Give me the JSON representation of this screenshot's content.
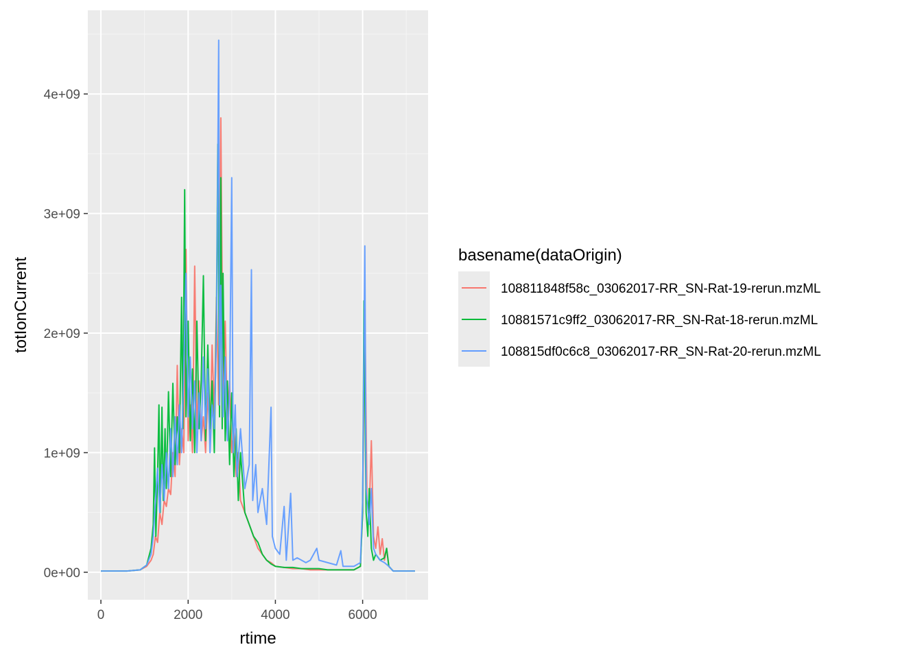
{
  "chart_data": {
    "type": "line",
    "xlabel": "rtime",
    "ylabel": "totIonCurrent",
    "xlim": [
      -300,
      7500
    ],
    "ylim": [
      -230000000,
      4700000000
    ],
    "x_ticks": [
      0,
      2000,
      4000,
      6000
    ],
    "x_tick_labels": [
      "0",
      "2000",
      "4000",
      "6000"
    ],
    "y_ticks": [
      0,
      1000000000,
      2000000000,
      3000000000,
      4000000000
    ],
    "y_tick_labels": [
      "0e+00",
      "1e+09",
      "2e+09",
      "3e+09",
      "4e+09"
    ],
    "grid": true,
    "legend": {
      "title": "basename(dataOrigin)",
      "placement": "right",
      "entries": [
        "108811848f58c_03062017-RR_SN-Rat-19-rerun.mzML",
        "10881571c9ff2_03062017-RR_SN-Rat-18-rerun.mzML",
        "108815df0c6c8_03062017-RR_SN-Rat-20-rerun.mzML"
      ]
    },
    "colors": [
      "#F8766D",
      "#00BA38",
      "#619CFF"
    ],
    "series": [
      {
        "name": "108811848f58c_03062017-RR_SN-Rat-19-rerun.mzML",
        "color": "#F8766D",
        "points": [
          [
            0,
            0.01
          ],
          [
            300,
            0.01
          ],
          [
            600,
            0.01
          ],
          [
            900,
            0.02
          ],
          [
            1050,
            0.05
          ],
          [
            1150,
            0.1
          ],
          [
            1200,
            0.15
          ],
          [
            1250,
            0.3
          ],
          [
            1300,
            0.25
          ],
          [
            1350,
            0.5
          ],
          [
            1400,
            0.4
          ],
          [
            1450,
            0.6
          ],
          [
            1500,
            0.55
          ],
          [
            1550,
            0.7
          ],
          [
            1600,
            0.65
          ],
          [
            1650,
            1.0
          ],
          [
            1700,
            0.8
          ],
          [
            1750,
            1.73
          ],
          [
            1800,
            0.9
          ],
          [
            1850,
            1.2
          ],
          [
            1900,
            1.0
          ],
          [
            1950,
            2.7
          ],
          [
            2000,
            1.1
          ],
          [
            2050,
            1.4
          ],
          [
            2100,
            1.0
          ],
          [
            2150,
            2.56
          ],
          [
            2200,
            1.2
          ],
          [
            2250,
            1.6
          ],
          [
            2300,
            1.1
          ],
          [
            2350,
            1.3
          ],
          [
            2400,
            1.0
          ],
          [
            2450,
            1.5
          ],
          [
            2500,
            1.1
          ],
          [
            2550,
            1.9
          ],
          [
            2600,
            1.3
          ],
          [
            2650,
            2.3
          ],
          [
            2700,
            1.4
          ],
          [
            2750,
            3.8
          ],
          [
            2800,
            1.5
          ],
          [
            2850,
            2.1
          ],
          [
            2900,
            1.2
          ],
          [
            2950,
            1.6
          ],
          [
            3000,
            1.0
          ],
          [
            3050,
            1.2
          ],
          [
            3100,
            0.8
          ],
          [
            3150,
            1.0
          ],
          [
            3200,
            0.6
          ],
          [
            3300,
            0.5
          ],
          [
            3400,
            0.4
          ],
          [
            3500,
            0.3
          ],
          [
            3600,
            0.2
          ],
          [
            3700,
            0.15
          ],
          [
            3800,
            0.1
          ],
          [
            3900,
            0.08
          ],
          [
            4000,
            0.05
          ],
          [
            4200,
            0.04
          ],
          [
            4400,
            0.03
          ],
          [
            4600,
            0.03
          ],
          [
            4800,
            0.02
          ],
          [
            5000,
            0.02
          ],
          [
            5200,
            0.02
          ],
          [
            5400,
            0.02
          ],
          [
            5600,
            0.02
          ],
          [
            5800,
            0.02
          ],
          [
            5950,
            0.05
          ],
          [
            6000,
            0.5
          ],
          [
            6050,
            2.2
          ],
          [
            6100,
            0.6
          ],
          [
            6150,
            0.5
          ],
          [
            6200,
            1.1
          ],
          [
            6250,
            0.3
          ],
          [
            6300,
            0.2
          ],
          [
            6350,
            0.38
          ],
          [
            6400,
            0.15
          ],
          [
            6450,
            0.28
          ],
          [
            6500,
            0.1
          ],
          [
            6550,
            0.2
          ],
          [
            6600,
            0.05
          ],
          [
            6700,
            0.01
          ],
          [
            7000,
            0.01
          ],
          [
            7200,
            0.01
          ]
        ]
      },
      {
        "name": "10881571c9ff2_03062017-RR_SN-Rat-18-rerun.mzML",
        "color": "#00BA38",
        "points": [
          [
            0,
            0.01
          ],
          [
            300,
            0.01
          ],
          [
            600,
            0.01
          ],
          [
            900,
            0.02
          ],
          [
            1050,
            0.06
          ],
          [
            1150,
            0.2
          ],
          [
            1200,
            0.4
          ],
          [
            1230,
            1.04
          ],
          [
            1260,
            0.3
          ],
          [
            1300,
            0.8
          ],
          [
            1330,
            1.4
          ],
          [
            1360,
            0.5
          ],
          [
            1400,
            1.38
          ],
          [
            1430,
            0.6
          ],
          [
            1470,
            1.2
          ],
          [
            1500,
            0.7
          ],
          [
            1550,
            1.51
          ],
          [
            1600,
            0.8
          ],
          [
            1650,
            1.58
          ],
          [
            1700,
            0.9
          ],
          [
            1750,
            1.3
          ],
          [
            1800,
            1.0
          ],
          [
            1850,
            2.3
          ],
          [
            1880,
            1.2
          ],
          [
            1920,
            3.2
          ],
          [
            1950,
            1.3
          ],
          [
            2000,
            2.1
          ],
          [
            2050,
            1.1
          ],
          [
            2100,
            1.7
          ],
          [
            2150,
            1.0
          ],
          [
            2200,
            2.1
          ],
          [
            2250,
            1.2
          ],
          [
            2300,
            1.6
          ],
          [
            2350,
            2.48
          ],
          [
            2400,
            1.1
          ],
          [
            2450,
            1.9
          ],
          [
            2500,
            1.2
          ],
          [
            2550,
            1.6
          ],
          [
            2600,
            1.0
          ],
          [
            2650,
            2.2
          ],
          [
            2680,
            3.58
          ],
          [
            2720,
            1.3
          ],
          [
            2750,
            3.3
          ],
          [
            2780,
            1.2
          ],
          [
            2800,
            2.5
          ],
          [
            2850,
            1.1
          ],
          [
            2900,
            1.6
          ],
          [
            2950,
            0.9
          ],
          [
            3000,
            1.5
          ],
          [
            3050,
            0.8
          ],
          [
            3100,
            1.2
          ],
          [
            3150,
            0.6
          ],
          [
            3200,
            1.0
          ],
          [
            3300,
            0.5
          ],
          [
            3400,
            0.4
          ],
          [
            3500,
            0.3
          ],
          [
            3600,
            0.25
          ],
          [
            3700,
            0.15
          ],
          [
            3800,
            0.1
          ],
          [
            3900,
            0.07
          ],
          [
            4000,
            0.05
          ],
          [
            4200,
            0.04
          ],
          [
            4400,
            0.04
          ],
          [
            4600,
            0.03
          ],
          [
            4800,
            0.03
          ],
          [
            5000,
            0.03
          ],
          [
            5200,
            0.02
          ],
          [
            5400,
            0.02
          ],
          [
            5600,
            0.02
          ],
          [
            5800,
            0.02
          ],
          [
            5950,
            0.05
          ],
          [
            6000,
            0.5
          ],
          [
            6030,
            2.27
          ],
          [
            6080,
            0.5
          ],
          [
            6120,
            0.3
          ],
          [
            6150,
            0.7
          ],
          [
            6200,
            0.2
          ],
          [
            6250,
            0.1
          ],
          [
            6300,
            0.15
          ],
          [
            6400,
            0.1
          ],
          [
            6500,
            0.12
          ],
          [
            6550,
            0.2
          ],
          [
            6600,
            0.05
          ],
          [
            6700,
            0.01
          ],
          [
            7000,
            0.01
          ],
          [
            7200,
            0.01
          ]
        ]
      },
      {
        "name": "108815df0c6c8_03062017-RR_SN-Rat-20-rerun.mzML",
        "color": "#619CFF",
        "points": [
          [
            0,
            0.01
          ],
          [
            300,
            0.01
          ],
          [
            600,
            0.01
          ],
          [
            900,
            0.02
          ],
          [
            1050,
            0.06
          ],
          [
            1150,
            0.15
          ],
          [
            1200,
            0.3
          ],
          [
            1250,
            0.6
          ],
          [
            1300,
            0.87
          ],
          [
            1350,
            0.5
          ],
          [
            1400,
            0.9
          ],
          [
            1450,
            0.6
          ],
          [
            1500,
            1.0
          ],
          [
            1550,
            0.7
          ],
          [
            1600,
            1.2
          ],
          [
            1650,
            0.8
          ],
          [
            1700,
            1.3
          ],
          [
            1750,
            0.9
          ],
          [
            1800,
            1.4
          ],
          [
            1850,
            1.0
          ],
          [
            1900,
            1.7
          ],
          [
            1950,
            2.5
          ],
          [
            2000,
            1.3
          ],
          [
            2050,
            1.8
          ],
          [
            2100,
            1.2
          ],
          [
            2150,
            1.6
          ],
          [
            2200,
            1.0
          ],
          [
            2250,
            1.5
          ],
          [
            2300,
            1.1
          ],
          [
            2350,
            1.8
          ],
          [
            2400,
            1.2
          ],
          [
            2450,
            1.7
          ],
          [
            2500,
            1.0
          ],
          [
            2550,
            1.4
          ],
          [
            2600,
            1.2
          ],
          [
            2650,
            2.0
          ],
          [
            2700,
            4.45
          ],
          [
            2720,
            1.4
          ],
          [
            2750,
            2.4
          ],
          [
            2800,
            1.3
          ],
          [
            2850,
            1.8
          ],
          [
            2900,
            1.1
          ],
          [
            2950,
            1.5
          ],
          [
            3000,
            3.3
          ],
          [
            3030,
            1.0
          ],
          [
            3080,
            1.4
          ],
          [
            3120,
            0.8
          ],
          [
            3200,
            1.2
          ],
          [
            3300,
            0.7
          ],
          [
            3400,
            0.9
          ],
          [
            3450,
            2.53
          ],
          [
            3480,
            0.6
          ],
          [
            3550,
            0.9
          ],
          [
            3600,
            0.5
          ],
          [
            3700,
            0.7
          ],
          [
            3800,
            0.4
          ],
          [
            3900,
            1.38
          ],
          [
            3930,
            0.3
          ],
          [
            4000,
            0.2
          ],
          [
            4100,
            0.15
          ],
          [
            4200,
            0.55
          ],
          [
            4250,
            0.1
          ],
          [
            4350,
            0.66
          ],
          [
            4400,
            0.1
          ],
          [
            4500,
            0.12
          ],
          [
            4600,
            0.1
          ],
          [
            4700,
            0.08
          ],
          [
            4800,
            0.1
          ],
          [
            4950,
            0.2
          ],
          [
            5000,
            0.1
          ],
          [
            5200,
            0.08
          ],
          [
            5400,
            0.06
          ],
          [
            5500,
            0.18
          ],
          [
            5550,
            0.05
          ],
          [
            5800,
            0.05
          ],
          [
            5950,
            0.08
          ],
          [
            6000,
            0.6
          ],
          [
            6050,
            2.73
          ],
          [
            6080,
            0.7
          ],
          [
            6150,
            0.4
          ],
          [
            6200,
            0.7
          ],
          [
            6250,
            0.2
          ],
          [
            6300,
            0.15
          ],
          [
            6400,
            0.1
          ],
          [
            6500,
            0.08
          ],
          [
            6600,
            0.05
          ],
          [
            6700,
            0.01
          ],
          [
            7000,
            0.01
          ],
          [
            7200,
            0.01
          ]
        ]
      }
    ]
  }
}
